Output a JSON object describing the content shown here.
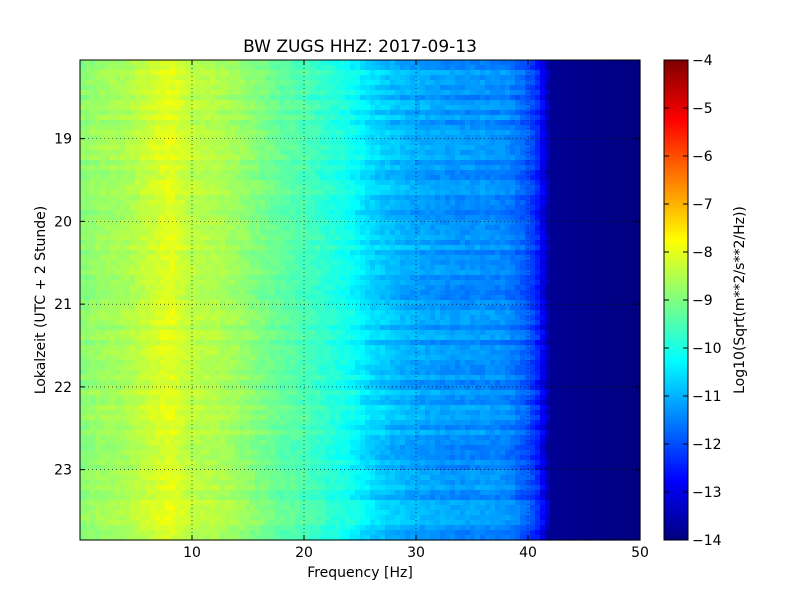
{
  "chart_data": {
    "type": "heatmap",
    "title": "BW ZUGS HHZ: 2017-09-13",
    "xlabel": "Frequency [Hz]",
    "ylabel": "Lokalzeit (UTC + 2 Stunde)",
    "colorbar_label": "Log10(Sqrt(m**2/s**2/Hz))",
    "colormap": "jet",
    "xlim": [
      0,
      50
    ],
    "ylim": [
      18.05,
      23.85
    ],
    "y_inverted": true,
    "x_ticks": [
      10,
      20,
      30,
      40,
      50
    ],
    "x_tick_labels": [
      "10",
      "20",
      "30",
      "40",
      "50"
    ],
    "y_ticks": [
      19,
      20,
      21,
      22,
      23
    ],
    "y_tick_labels": [
      "19",
      "20",
      "21",
      "22",
      "23"
    ],
    "color_range": [
      -14,
      -4
    ],
    "colorbar_ticks": [
      -4,
      -5,
      -6,
      -7,
      -8,
      -9,
      -10,
      -11,
      -12,
      -13,
      -14
    ],
    "colorbar_tick_labels": [
      "−4",
      "−5",
      "−6",
      "−7",
      "−8",
      "−9",
      "−10",
      "−11",
      "−12",
      "−13",
      "−14"
    ],
    "grid": true,
    "frequency_profile": [
      [
        0,
        -8.9
      ],
      [
        2,
        -8.7
      ],
      [
        4,
        -8.6
      ],
      [
        6,
        -8.3
      ],
      [
        8,
        -8.0
      ],
      [
        10,
        -8.4
      ],
      [
        12,
        -8.5
      ],
      [
        14,
        -8.7
      ],
      [
        16,
        -9.0
      ],
      [
        18,
        -9.3
      ],
      [
        20,
        -9.5
      ],
      [
        22,
        -9.8
      ],
      [
        24,
        -10.1
      ],
      [
        26,
        -10.6
      ],
      [
        28,
        -10.9
      ],
      [
        30,
        -11.1
      ],
      [
        32,
        -11.2
      ],
      [
        34,
        -11.3
      ],
      [
        36,
        -11.3
      ],
      [
        38,
        -11.4
      ],
      [
        40,
        -11.9
      ],
      [
        41,
        -12.5
      ],
      [
        42,
        -13.8
      ],
      [
        50,
        -14.0
      ]
    ]
  }
}
